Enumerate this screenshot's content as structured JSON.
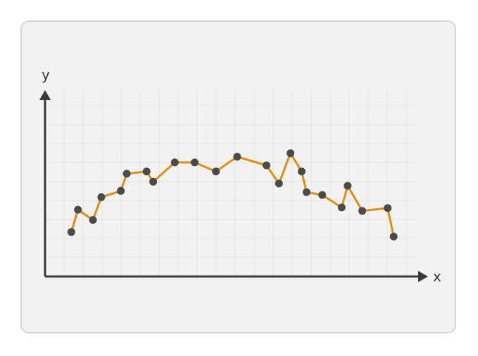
{
  "chart_data": {
    "type": "line",
    "title": "",
    "xlabel": "x",
    "ylabel": "y",
    "grid": true,
    "legend": "none",
    "xlim": [
      0,
      100
    ],
    "ylim": [
      0,
      100
    ],
    "series": [
      {
        "values": [
          {
            "x": 4.3,
            "y": 17.4
          },
          {
            "x": 6.2,
            "y": 32.2
          },
          {
            "x": 10.5,
            "y": 25.4
          },
          {
            "x": 12.9,
            "y": 40.5
          },
          {
            "x": 18.5,
            "y": 44.7
          },
          {
            "x": 20.2,
            "y": 56.1
          },
          {
            "x": 25.9,
            "y": 57.6
          },
          {
            "x": 27.8,
            "y": 50.8
          },
          {
            "x": 34.0,
            "y": 63.6
          },
          {
            "x": 39.7,
            "y": 63.6
          },
          {
            "x": 45.8,
            "y": 57.6
          },
          {
            "x": 51.9,
            "y": 67.4
          },
          {
            "x": 60.3,
            "y": 61.7
          },
          {
            "x": 63.9,
            "y": 49.6
          },
          {
            "x": 67.2,
            "y": 69.7
          },
          {
            "x": 70.4,
            "y": 57.6
          },
          {
            "x": 71.8,
            "y": 43.9
          },
          {
            "x": 76.3,
            "y": 42.0
          },
          {
            "x": 81.9,
            "y": 33.7
          },
          {
            "x": 83.6,
            "y": 48.1
          },
          {
            "x": 87.8,
            "y": 31.4
          },
          {
            "x": 95.1,
            "y": 33.3
          },
          {
            "x": 96.8,
            "y": 14.4
          }
        ]
      }
    ]
  },
  "colors": {
    "card_background": "#f2f2f2",
    "card_border": "#d5d5d5",
    "grid": "#e2e2e2",
    "axis": "#3a3a3a",
    "line": "#e08e0b",
    "marker": "#4a4a4a"
  }
}
